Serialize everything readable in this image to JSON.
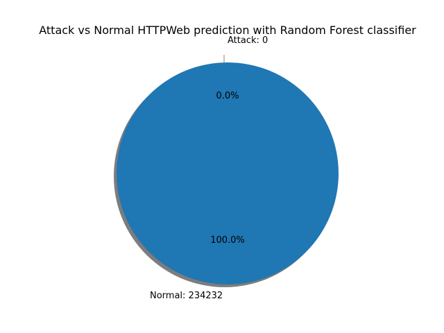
{
  "chart_data": {
    "type": "pie",
    "title": "Attack vs Normal HTTPWeb prediction with Random Forest classifier",
    "slices": [
      {
        "label": "Attack: 0",
        "value": 0,
        "pct_label": "0.0%",
        "color": "#ff7f0e"
      },
      {
        "label": "Normal: 234232",
        "value": 234232,
        "pct_label": "100.0%",
        "color": "#1f77b4"
      }
    ],
    "shadow": true,
    "explode_attack": true
  }
}
